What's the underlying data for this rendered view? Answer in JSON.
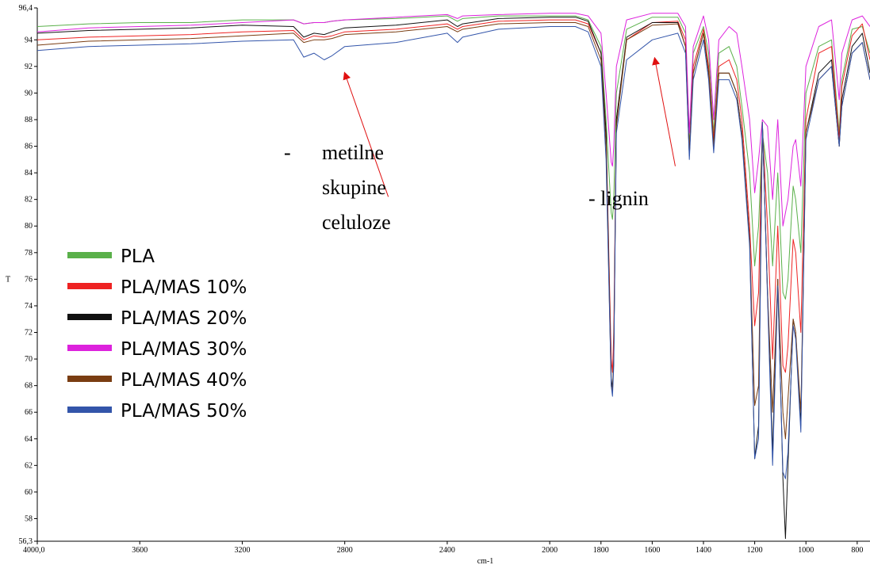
{
  "chart_data": {
    "type": "line",
    "xlabel": "cm-1",
    "ylabel": "T",
    "xlim": [
      4000,
      750
    ],
    "ylim": [
      56.3,
      96.4
    ],
    "x_ticks": [
      4000,
      3600,
      3200,
      2800,
      2400,
      2000,
      1800,
      1600,
      1400,
      1200,
      1000,
      800
    ],
    "x_tick_labels": [
      "4000,0",
      "3600",
      "3200",
      "2800",
      "2400",
      "2000",
      "1800",
      "1600",
      "1400",
      "1200",
      "1000",
      "800"
    ],
    "y_ticks": [
      56.3,
      58,
      60,
      62,
      64,
      66,
      68,
      70,
      72,
      74,
      76,
      78,
      80,
      82,
      84,
      86,
      88,
      90,
      92,
      94,
      96.4
    ],
    "y_tick_labels": [
      "56,3",
      "58",
      "60",
      "62",
      "64",
      "66",
      "68",
      "70",
      "72",
      "74",
      "76",
      "78",
      "80",
      "82",
      "84",
      "86",
      "88",
      "90",
      "92",
      "94",
      "96,4"
    ],
    "legend_position": "left",
    "x": [
      4000,
      3800,
      3600,
      3400,
      3200,
      3000,
      2960,
      2920,
      2880,
      2850,
      2800,
      2600,
      2400,
      2360,
      2340,
      2200,
      2000,
      1900,
      1850,
      1800,
      1780,
      1760,
      1755,
      1750,
      1740,
      1700,
      1600,
      1500,
      1470,
      1455,
      1440,
      1400,
      1380,
      1360,
      1340,
      1300,
      1270,
      1250,
      1220,
      1200,
      1185,
      1170,
      1150,
      1130,
      1110,
      1090,
      1080,
      1070,
      1050,
      1040,
      1020,
      1000,
      950,
      900,
      870,
      860,
      820,
      780,
      750
    ],
    "series": [
      {
        "name": "PLA",
        "color": "#5ab04a",
        "values": [
          95.0,
          95.2,
          95.3,
          95.3,
          95.5,
          95.5,
          95.2,
          95.3,
          95.3,
          95.4,
          95.5,
          95.6,
          95.8,
          95.4,
          95.6,
          95.8,
          95.8,
          95.8,
          95.5,
          93.5,
          88.0,
          81.0,
          80.5,
          82.0,
          90.0,
          94.8,
          95.7,
          95.7,
          94.5,
          86.0,
          93.0,
          95.0,
          93.0,
          87.0,
          93.0,
          93.5,
          92.0,
          89.0,
          84.0,
          77.0,
          80.0,
          87.0,
          84.0,
          77.0,
          84.0,
          75.0,
          74.5,
          76.0,
          83.0,
          82.0,
          78.0,
          90.0,
          93.5,
          94.0,
          87.0,
          91.0,
          94.8,
          95.0,
          93.0
        ]
      },
      {
        "name": "PLA/MAS 10%",
        "color": "#ee2222",
        "values": [
          94.0,
          94.2,
          94.3,
          94.4,
          94.6,
          94.7,
          94.0,
          94.3,
          94.2,
          94.3,
          94.6,
          94.8,
          95.2,
          94.8,
          95.0,
          95.4,
          95.5,
          95.5,
          95.2,
          93.0,
          87.0,
          70.0,
          69.0,
          72.0,
          88.0,
          94.0,
          95.3,
          95.4,
          94.0,
          85.5,
          92.0,
          94.8,
          92.0,
          86.5,
          92.0,
          92.5,
          91.0,
          88.0,
          80.0,
          72.5,
          75.0,
          87.5,
          80.0,
          70.0,
          80.0,
          69.5,
          69.0,
          71.0,
          79.0,
          78.0,
          72.0,
          88.0,
          93.0,
          93.5,
          86.5,
          90.5,
          94.3,
          95.2,
          92.5
        ]
      },
      {
        "name": "PLA/MAS 20%",
        "color": "#111111",
        "values": [
          94.5,
          94.7,
          94.8,
          94.9,
          95.1,
          95.0,
          94.2,
          94.5,
          94.4,
          94.6,
          94.9,
          95.1,
          95.5,
          95.0,
          95.2,
          95.6,
          95.7,
          95.7,
          95.4,
          93.0,
          87.0,
          68.5,
          67.8,
          70.0,
          88.0,
          94.2,
          95.3,
          95.3,
          93.5,
          85.3,
          91.5,
          94.5,
          91.5,
          86.0,
          91.5,
          91.5,
          90.0,
          87.0,
          79.0,
          62.5,
          65.0,
          87.8,
          75.0,
          63.0,
          76.0,
          61.0,
          56.5,
          62.0,
          73.0,
          72.0,
          65.0,
          87.0,
          91.5,
          92.5,
          86.0,
          89.5,
          93.5,
          94.5,
          91.5
        ]
      },
      {
        "name": "PLA/MAS 30%",
        "color": "#dd22dd",
        "values": [
          94.6,
          94.9,
          95.0,
          95.1,
          95.3,
          95.5,
          95.2,
          95.3,
          95.3,
          95.4,
          95.5,
          95.7,
          95.9,
          95.6,
          95.8,
          95.9,
          96.0,
          96.0,
          95.8,
          94.5,
          90.0,
          84.8,
          84.5,
          86.0,
          92.0,
          95.5,
          96.0,
          96.0,
          95.0,
          87.0,
          93.5,
          95.8,
          94.0,
          88.0,
          94.0,
          95.0,
          94.5,
          92.0,
          88.0,
          82.5,
          85.0,
          88.0,
          87.5,
          82.0,
          88.0,
          80.0,
          81.0,
          82.0,
          86.0,
          86.5,
          83.0,
          92.0,
          95.0,
          95.5,
          89.5,
          93.0,
          95.5,
          95.8,
          95.0
        ]
      },
      {
        "name": "PLA/MAS 40%",
        "color": "#7a3d12",
        "values": [
          93.6,
          93.9,
          94.0,
          94.1,
          94.3,
          94.5,
          93.8,
          94.0,
          94.0,
          94.1,
          94.4,
          94.6,
          95.0,
          94.6,
          94.8,
          95.2,
          95.3,
          95.3,
          95.0,
          92.5,
          86.0,
          68.0,
          67.5,
          70.0,
          87.5,
          94.0,
          95.1,
          95.2,
          93.5,
          85.3,
          91.5,
          94.5,
          91.5,
          86.0,
          91.5,
          91.5,
          90.0,
          87.0,
          79.0,
          66.5,
          68.0,
          87.8,
          75.0,
          66.0,
          76.0,
          66.0,
          64.0,
          67.0,
          73.0,
          72.0,
          66.0,
          87.0,
          91.0,
          92.0,
          86.0,
          89.0,
          93.0,
          93.8,
          91.0
        ]
      },
      {
        "name": "PLA/MAS 50%",
        "color": "#3355aa",
        "values": [
          93.2,
          93.5,
          93.6,
          93.7,
          93.9,
          94.0,
          92.7,
          93.0,
          92.5,
          92.8,
          93.5,
          93.8,
          94.5,
          93.8,
          94.2,
          94.8,
          95.0,
          95.0,
          94.6,
          92.0,
          85.0,
          68.0,
          67.2,
          69.5,
          87.0,
          92.5,
          94.0,
          94.5,
          93.0,
          85.0,
          91.0,
          94.0,
          91.0,
          85.5,
          91.0,
          91.0,
          89.5,
          86.5,
          78.5,
          62.5,
          64.0,
          87.8,
          74.5,
          62.0,
          75.5,
          61.5,
          61.0,
          63.0,
          72.5,
          71.5,
          64.5,
          86.5,
          91.0,
          92.0,
          86.0,
          89.0,
          93.0,
          93.8,
          91.0
        ]
      }
    ],
    "annotations": [
      {
        "dash": "-",
        "lines": [
          "metilne",
          "skupine",
          "celuloze"
        ],
        "arrow_from": [
          2630,
          82.2
        ],
        "arrow_to": [
          2800,
          91.5
        ]
      },
      {
        "text": "- lignin",
        "arrow_from": [
          1510,
          84.5
        ],
        "arrow_to": [
          1590,
          92.6
        ]
      }
    ]
  }
}
